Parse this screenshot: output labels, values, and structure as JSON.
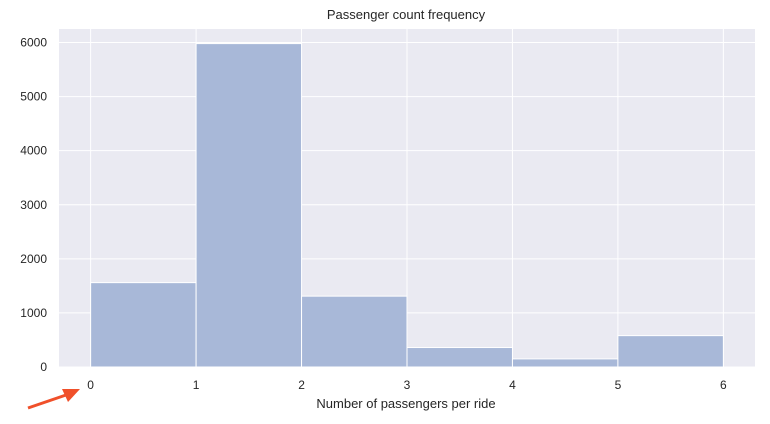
{
  "chart_data": {
    "type": "bar",
    "title": "Passenger count frequency",
    "xlabel": "Number of passengers per ride",
    "ylabel": "",
    "x_ticks": [
      "0",
      "1",
      "2",
      "3",
      "4",
      "5",
      "6"
    ],
    "y_ticks": [
      "0",
      "1000",
      "2000",
      "3000",
      "4000",
      "5000",
      "6000"
    ],
    "bins": [
      [
        0,
        1
      ],
      [
        1,
        2
      ],
      [
        2,
        3
      ],
      [
        3,
        4
      ],
      [
        4,
        5
      ],
      [
        5,
        6
      ]
    ],
    "values": [
      1560,
      5980,
      1310,
      360,
      150,
      580
    ],
    "xlim": [
      -0.3,
      6.3
    ],
    "ylim": [
      0,
      6250
    ],
    "grid": true,
    "colors": {
      "background": "#EAEAF2",
      "bar": "#A8B8D8",
      "grid": "#FFFFFF",
      "arrow": "#F0502A"
    }
  },
  "annotation": {
    "type": "arrow",
    "points_to": "0"
  }
}
